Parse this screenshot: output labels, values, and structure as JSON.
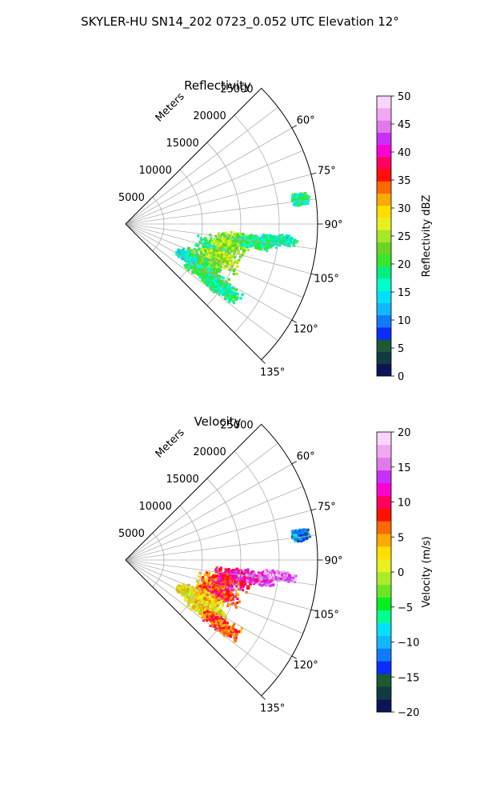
{
  "figure": {
    "title": "SKYLER-HU  SN14_202  0723_0.052 UTC Elevation 12°"
  },
  "chart_data": [
    {
      "type": "polar-sector",
      "title": "Reflectivity",
      "radial_label": "Meters",
      "theta_range_deg": [
        45,
        135
      ],
      "theta_ticks": [
        "60°",
        "75°",
        "90°",
        "105°",
        "120°",
        "135°"
      ],
      "theta_tick_values": [
        60,
        75,
        90,
        105,
        120,
        135
      ],
      "r_max": 25000,
      "r_ticks": [
        "5000",
        "10000",
        "15000",
        "20000",
        "25000"
      ],
      "r_tick_values": [
        5000,
        10000,
        15000,
        20000,
        25000
      ],
      "grid": true,
      "colorbar": {
        "label": "Reflectivity dBZ",
        "min": 0,
        "max": 50,
        "ticks": [
          "0",
          "5",
          "10",
          "15",
          "20",
          "25",
          "30",
          "35",
          "40",
          "45",
          "50"
        ],
        "tick_values": [
          0,
          5,
          10,
          15,
          20,
          25,
          30,
          35,
          40,
          45,
          50
        ],
        "colors": [
          "#0b1456",
          "#123a40",
          "#1a5a34",
          "#0b2cff",
          "#0f7bff",
          "#12b8ff",
          "#00e0ff",
          "#00ffc8",
          "#00f080",
          "#38e62c",
          "#6ad422",
          "#a8e628",
          "#e8f020",
          "#ffde00",
          "#ffaa00",
          "#ff6a00",
          "#ff1000",
          "#ff0060",
          "#ff00d0",
          "#c830ff",
          "#e07ae8",
          "#f0a8f0",
          "#fad4fa"
        ]
      },
      "echoes": [
        {
          "range_m": 12000,
          "azimuth_deg": 106,
          "value": 18,
          "extent_m": 2600,
          "spread_deg": 8
        },
        {
          "range_m": 14000,
          "azimuth_deg": 100,
          "value": 24,
          "extent_m": 3000,
          "spread_deg": 6
        },
        {
          "range_m": 13000,
          "azimuth_deg": 110,
          "value": 25,
          "extent_m": 3000,
          "spread_deg": 5
        },
        {
          "range_m": 11000,
          "azimuth_deg": 116,
          "value": 22,
          "extent_m": 3200,
          "spread_deg": 6
        },
        {
          "range_m": 12500,
          "azimuth_deg": 122,
          "value": 20,
          "extent_m": 3500,
          "spread_deg": 5
        },
        {
          "range_m": 15000,
          "azimuth_deg": 124,
          "value": 18,
          "extent_m": 3000,
          "spread_deg": 4
        },
        {
          "range_m": 17000,
          "azimuth_deg": 98,
          "value": 19,
          "extent_m": 3000,
          "spread_deg": 3
        },
        {
          "range_m": 20000,
          "azimuth_deg": 96,
          "value": 17,
          "extent_m": 2500,
          "spread_deg": 2
        },
        {
          "range_m": 23000,
          "azimuth_deg": 82,
          "value": 18,
          "extent_m": 1200,
          "spread_deg": 2
        },
        {
          "range_m": 9000,
          "azimuth_deg": 118,
          "value": 16,
          "extent_m": 1500,
          "spread_deg": 4
        }
      ]
    },
    {
      "type": "polar-sector",
      "title": "Velocity",
      "radial_label": "Meters",
      "theta_range_deg": [
        45,
        135
      ],
      "theta_ticks": [
        "60°",
        "75°",
        "90°",
        "105°",
        "120°",
        "135°"
      ],
      "theta_tick_values": [
        60,
        75,
        90,
        105,
        120,
        135
      ],
      "r_max": 25000,
      "r_ticks": [
        "5000",
        "10000",
        "15000",
        "20000",
        "25000"
      ],
      "r_tick_values": [
        5000,
        10000,
        15000,
        20000,
        25000
      ],
      "grid": true,
      "colorbar": {
        "label": "Velocity (m/s)",
        "min": -20,
        "max": 20,
        "ticks": [
          "−20",
          "−15",
          "−10",
          "−5",
          "0",
          "5",
          "10",
          "15",
          "20"
        ],
        "tick_values": [
          -20,
          -15,
          -10,
          -5,
          0,
          5,
          10,
          15,
          20
        ],
        "colors": [
          "#0b1456",
          "#123a40",
          "#1a5a34",
          "#0b2cff",
          "#0f7bff",
          "#12b8ff",
          "#00e0ff",
          "#00ff8c",
          "#00f020",
          "#6ae622",
          "#a8ee28",
          "#e8f020",
          "#ffde00",
          "#ffaa00",
          "#ff6a00",
          "#ff1000",
          "#ff0060",
          "#ff00d0",
          "#c830ff",
          "#e07ae8",
          "#f0a8f0",
          "#fad4fa"
        ]
      },
      "echoes": [
        {
          "range_m": 12000,
          "azimuth_deg": 106,
          "value": 6,
          "extent_m": 2600,
          "spread_deg": 8
        },
        {
          "range_m": 14000,
          "azimuth_deg": 100,
          "value": 10,
          "extent_m": 3000,
          "spread_deg": 6
        },
        {
          "range_m": 13000,
          "azimuth_deg": 110,
          "value": 8,
          "extent_m": 3000,
          "spread_deg": 5
        },
        {
          "range_m": 11000,
          "azimuth_deg": 116,
          "value": 3,
          "extent_m": 3200,
          "spread_deg": 6
        },
        {
          "range_m": 12500,
          "azimuth_deg": 122,
          "value": 2,
          "extent_m": 3500,
          "spread_deg": 5
        },
        {
          "range_m": 15000,
          "azimuth_deg": 124,
          "value": 7,
          "extent_m": 3000,
          "spread_deg": 4
        },
        {
          "range_m": 17000,
          "azimuth_deg": 98,
          "value": 13,
          "extent_m": 3000,
          "spread_deg": 3
        },
        {
          "range_m": 20000,
          "azimuth_deg": 96,
          "value": 16,
          "extent_m": 2500,
          "spread_deg": 2
        },
        {
          "range_m": 23000,
          "azimuth_deg": 82,
          "value": -12,
          "extent_m": 1200,
          "spread_deg": 2
        },
        {
          "range_m": 9000,
          "azimuth_deg": 118,
          "value": 1,
          "extent_m": 1500,
          "spread_deg": 4
        }
      ]
    }
  ]
}
